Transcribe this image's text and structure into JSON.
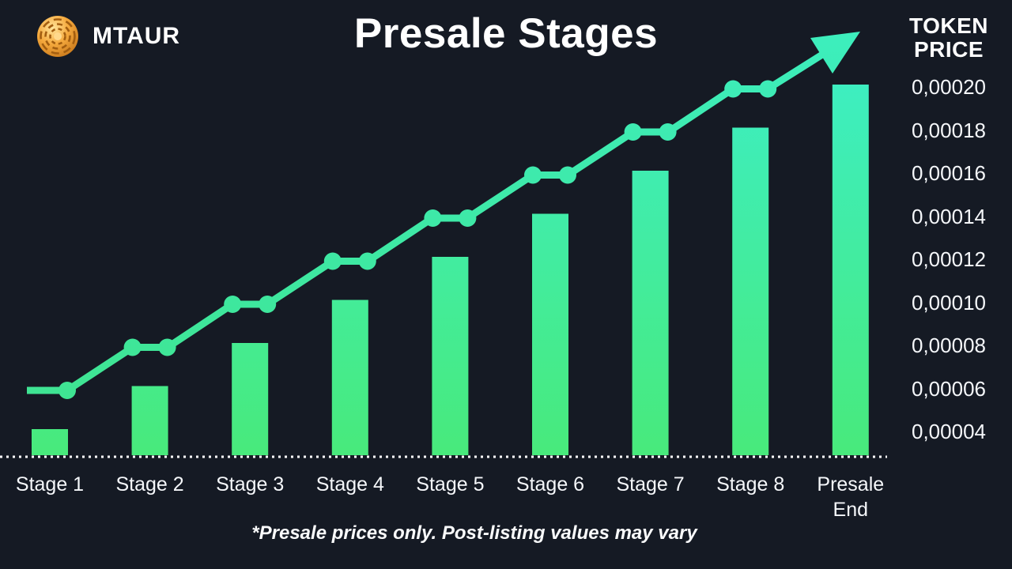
{
  "header": {
    "brand": "MTAUR",
    "coin_icon": "gold-labyrinth-coin",
    "price_axis": {
      "line1": "TOKEN",
      "line2": "PRICE"
    }
  },
  "footnote": {
    "text": "*Presale prices only. Post-listing values may vary"
  },
  "colors": {
    "background": "#151a24",
    "bar_top": "#3deec1",
    "bar_bottom": "#48ea7b",
    "line_top": "#3deebd",
    "line_bottom": "#3fe491",
    "axis": "#ffffff",
    "coin_gold": "#f5a93d",
    "text": "#ffffff"
  },
  "chart_data": {
    "type": "bar",
    "title": "Presale Stages",
    "ylabel": "TOKEN PRICE",
    "xlabel": "",
    "categories": [
      "Stage 1",
      "Stage 2",
      "Stage 3",
      "Stage 4",
      "Stage 5",
      "Stage 6",
      "Stage 7",
      "Stage 8",
      "Presale\nEnd"
    ],
    "values": [
      4e-05,
      6e-05,
      8e-05,
      0.0001,
      0.00012,
      0.00014,
      0.00016,
      0.00018,
      0.0002
    ],
    "value_labels": [
      "0,00004",
      "0,00006",
      "0,00008",
      "0,00010",
      "0,00012",
      "0,00014",
      "0,00016",
      "0,00018",
      "0,00020"
    ],
    "y_tick_labels": [
      "0,00020",
      "0,00018",
      "0,00016",
      "0,00014",
      "0,00012",
      "0,00010",
      "0,00008",
      "0,00006",
      "0,00004"
    ],
    "ylim": [
      2e-05,
      0.00022
    ],
    "grid": false,
    "legend": "none",
    "trend_line": {
      "present": true,
      "style": "stepped-with-dots",
      "arrow_end": true,
      "covers_stages": [
        1,
        8
      ]
    }
  }
}
